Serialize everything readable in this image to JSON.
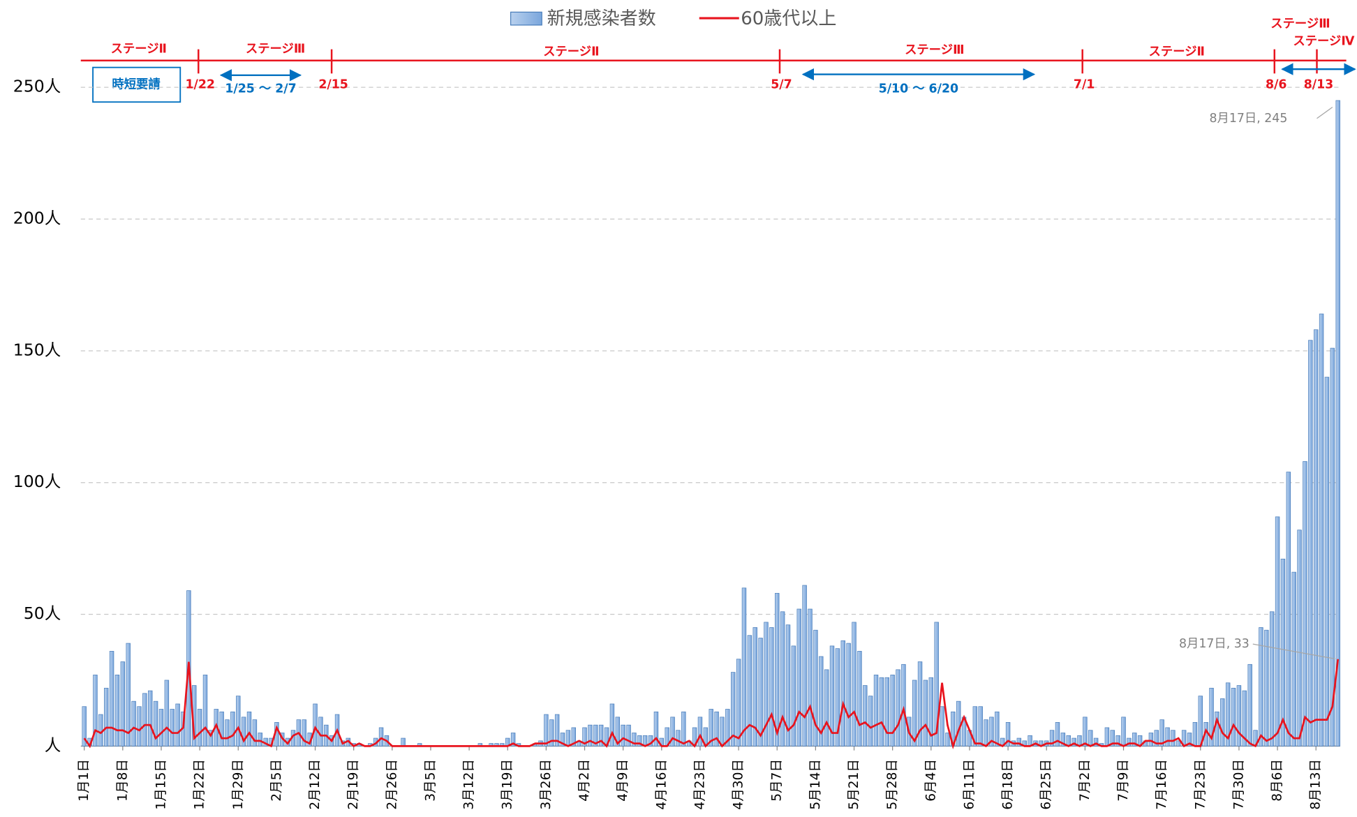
{
  "chart_data": {
    "type": "bar_line",
    "legend": "top",
    "categories": [
      "1月1日",
      null,
      null,
      null,
      null,
      null,
      null,
      "1月8日",
      null,
      null,
      null,
      null,
      null,
      null,
      "1月15日",
      null,
      null,
      null,
      null,
      null,
      null,
      "1月22日",
      null,
      null,
      null,
      null,
      null,
      null,
      "1月29日",
      null,
      null,
      null,
      null,
      null,
      null,
      "2月5日",
      null,
      null,
      null,
      null,
      null,
      null,
      "2月12日",
      null,
      null,
      null,
      null,
      null,
      null,
      "2月19日",
      null,
      null,
      null,
      null,
      null,
      null,
      "2月26日",
      null,
      null,
      null,
      null,
      null,
      null,
      "3月5日",
      null,
      null,
      null,
      null,
      null,
      null,
      "3月12日",
      null,
      null,
      null,
      null,
      null,
      null,
      "3月19日",
      null,
      null,
      null,
      null,
      null,
      null,
      "3月26日",
      null,
      null,
      null,
      null,
      null,
      null,
      "4月2日",
      null,
      null,
      null,
      null,
      null,
      null,
      "4月9日",
      null,
      null,
      null,
      null,
      null,
      null,
      "4月16日",
      null,
      null,
      null,
      null,
      null,
      null,
      "4月23日",
      null,
      null,
      null,
      null,
      null,
      null,
      "4月30日",
      null,
      null,
      null,
      null,
      null,
      null,
      "5月7日",
      null,
      null,
      null,
      null,
      null,
      null,
      "5月14日",
      null,
      null,
      null,
      null,
      null,
      null,
      "5月21日",
      null,
      null,
      null,
      null,
      null,
      null,
      "5月28日",
      null,
      null,
      null,
      null,
      null,
      null,
      "6月4日",
      null,
      null,
      null,
      null,
      null,
      null,
      "6月11日",
      null,
      null,
      null,
      null,
      null,
      null,
      "6月18日",
      null,
      null,
      null,
      null,
      null,
      null,
      "6月25日",
      null,
      null,
      null,
      null,
      null,
      null,
      "7月2日",
      null,
      null,
      null,
      null,
      null,
      null,
      "7月9日",
      null,
      null,
      null,
      null,
      null,
      null,
      "7月16日",
      null,
      null,
      null,
      null,
      null,
      null,
      "7月23日",
      null,
      null,
      null,
      null,
      null,
      null,
      "7月30日",
      null,
      null,
      null,
      null,
      null,
      null,
      "8月6日",
      null,
      null,
      null,
      null,
      null,
      null,
      "8月13日",
      null,
      null,
      null,
      null
    ],
    "series": [
      {
        "name": "新規感染者数",
        "type": "bar",
        "color": "#8db4e2",
        "values": [
          15,
          3,
          27,
          12,
          22,
          36,
          27,
          32,
          39,
          17,
          15,
          20,
          21,
          17,
          14,
          25,
          14,
          16,
          13,
          59,
          23,
          14,
          27,
          6,
          14,
          13,
          10,
          13,
          19,
          11,
          13,
          10,
          5,
          3,
          3,
          9,
          5,
          3,
          6,
          10,
          10,
          5,
          16,
          11,
          8,
          4,
          12,
          2,
          3,
          1,
          1,
          0,
          1,
          3,
          7,
          4,
          0,
          0,
          3,
          0,
          0,
          1,
          0,
          0,
          0,
          0,
          0,
          0,
          0,
          0,
          0,
          0,
          1,
          0,
          1,
          1,
          1,
          3,
          5,
          1,
          0,
          0,
          1,
          2,
          12,
          10,
          12,
          5,
          6,
          7,
          2,
          7,
          8,
          8,
          8,
          7,
          16,
          11,
          8,
          8,
          5,
          4,
          4,
          4,
          13,
          3,
          7,
          11,
          6,
          13,
          2,
          7,
          11,
          7,
          14,
          13,
          11,
          14,
          28,
          33,
          60,
          42,
          45,
          41,
          47,
          45,
          58,
          51,
          46,
          38,
          52,
          61,
          52,
          44,
          34,
          29,
          38,
          37,
          40,
          39,
          47,
          36,
          23,
          19,
          27,
          26,
          26,
          27,
          29,
          31,
          11,
          25,
          32,
          25,
          26,
          47,
          15,
          5,
          13,
          17,
          11,
          6,
          15,
          15,
          10,
          11,
          13,
          3,
          9,
          2,
          3,
          2,
          4,
          2,
          2,
          2,
          6,
          9,
          5,
          4,
          3,
          4,
          11,
          6,
          3,
          1,
          7,
          6,
          4,
          11,
          3,
          5,
          4,
          2,
          5,
          6,
          10,
          7,
          6,
          2,
          6,
          5,
          9,
          19,
          9,
          22,
          13,
          18,
          24,
          22,
          23,
          21,
          31,
          6,
          45,
          44,
          51,
          87,
          71,
          104,
          66,
          82,
          108,
          154,
          158,
          164,
          140,
          151,
          245
        ]
      },
      {
        "name": "60歳代以上",
        "type": "line",
        "color": "#e8141e",
        "values": [
          3,
          0,
          6,
          5,
          7,
          7,
          6,
          6,
          5,
          7,
          6,
          8,
          8,
          3,
          5,
          7,
          5,
          5,
          7,
          32,
          3,
          5,
          7,
          4,
          8,
          3,
          3,
          4,
          7,
          2,
          5,
          2,
          2,
          1,
          0,
          7,
          3,
          1,
          4,
          5,
          2,
          1,
          7,
          4,
          4,
          2,
          6,
          1,
          2,
          0,
          1,
          0,
          0,
          1,
          3,
          2,
          0,
          0,
          0,
          0,
          0,
          0,
          0,
          0,
          0,
          0,
          0,
          0,
          0,
          0,
          0,
          0,
          0,
          0,
          0,
          0,
          0,
          0,
          1,
          0,
          0,
          0,
          1,
          1,
          1,
          2,
          2,
          1,
          0,
          1,
          2,
          1,
          2,
          1,
          2,
          0,
          5,
          1,
          3,
          2,
          1,
          1,
          0,
          1,
          3,
          0,
          0,
          3,
          2,
          1,
          2,
          0,
          4,
          0,
          2,
          3,
          0,
          2,
          4,
          3,
          6,
          8,
          7,
          4,
          8,
          12,
          5,
          11,
          6,
          8,
          13,
          11,
          15,
          8,
          5,
          9,
          5,
          5,
          16,
          11,
          13,
          8,
          9,
          7,
          8,
          9,
          5,
          5,
          8,
          14,
          5,
          2,
          6,
          8,
          4,
          5,
          24,
          8,
          0,
          6,
          11,
          6,
          1,
          1,
          0,
          2,
          1,
          0,
          2,
          1,
          1,
          0,
          0,
          1,
          0,
          1,
          1,
          2,
          1,
          0,
          1,
          0,
          1,
          0,
          1,
          0,
          0,
          1,
          1,
          0,
          1,
          1,
          0,
          2,
          2,
          1,
          1,
          2,
          2,
          3,
          0,
          1,
          0,
          0,
          6,
          3,
          10,
          5,
          3,
          8,
          5,
          3,
          1,
          0,
          4,
          2,
          3,
          5,
          10,
          5,
          3,
          3,
          11,
          9,
          10,
          10,
          10,
          15,
          33
        ]
      }
    ],
    "ylim": [
      0,
      250
    ],
    "yticks": [
      {
        "value": 0,
        "label": "人"
      },
      {
        "value": 50,
        "label": "50人"
      },
      {
        "value": 100,
        "label": "100人"
      },
      {
        "value": 150,
        "label": "150人"
      },
      {
        "value": 200,
        "label": "200人"
      },
      {
        "value": 250,
        "label": "250人"
      }
    ],
    "grid": true,
    "annotations": [
      "8月17日, 245",
      "8月17日, 33"
    ],
    "stages": [
      "ステージⅡ",
      "ステージⅢ",
      "ステージⅡ",
      "ステージⅢ",
      "ステージⅡ",
      "ステージⅢ",
      "ステージⅣ"
    ],
    "stage_dates": [
      "1/22",
      "2/15",
      "5/7",
      "7/1",
      "8/6",
      "8/13"
    ],
    "request_periods": [
      "1/25 ～ 2/7",
      "5/10 ～ 6/20"
    ],
    "request_label": "時短要請"
  }
}
